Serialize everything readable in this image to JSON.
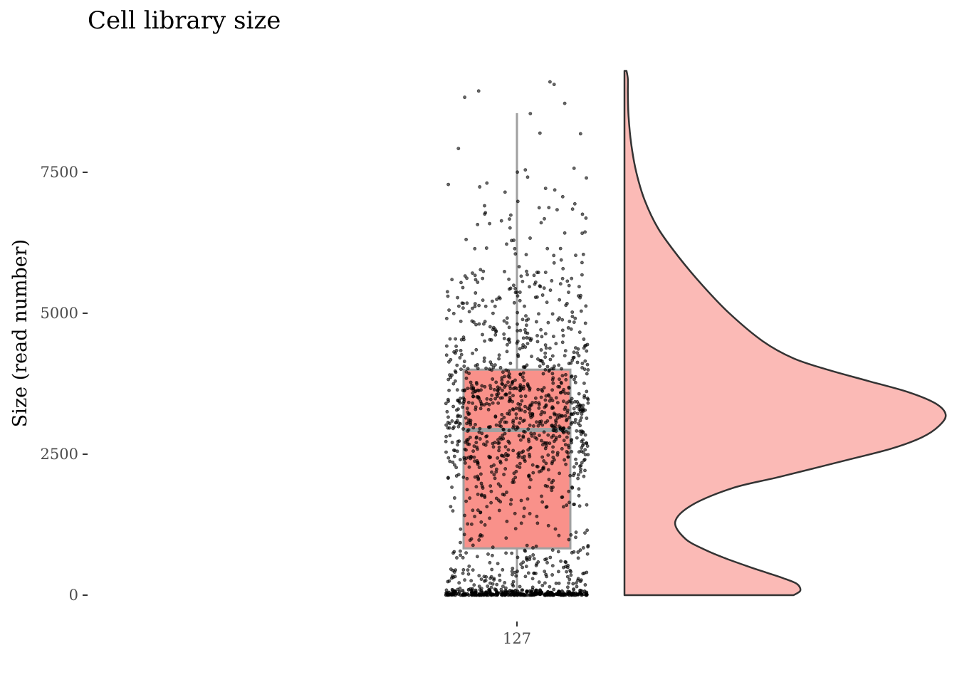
{
  "chart_data": {
    "type": "raincloud",
    "title": "Cell library size",
    "xlabel": "",
    "ylabel": "Size (read number)",
    "categories": [
      "127"
    ],
    "ylim": [
      0,
      9300
    ],
    "y_ticks": [
      "0",
      "2500",
      "5000",
      "7500"
    ],
    "y_tick_values": [
      0,
      2500,
      5000,
      7500
    ],
    "boxplot": {
      "category": "127",
      "whisker_low": 0,
      "q1": 830,
      "median": 2930,
      "q3": 4000,
      "whisker_high": 8550
    },
    "density": {
      "y": [
        0,
        80,
        200,
        300,
        400,
        500,
        650,
        800,
        1000,
        1300,
        1600,
        1900,
        2100,
        2400,
        2600,
        2800,
        3000,
        3200,
        3400,
        3600,
        3800,
        4000,
        4200,
        4500,
        5000,
        5500,
        6000,
        6500,
        7000,
        7500,
        8000,
        8500,
        8900,
        9150,
        9300
      ],
      "density": [
        0.5,
        0.52,
        0.51,
        0.47,
        0.42,
        0.37,
        0.3,
        0.24,
        0.18,
        0.15,
        0.2,
        0.32,
        0.46,
        0.66,
        0.79,
        0.88,
        0.93,
        0.95,
        0.92,
        0.84,
        0.72,
        0.6,
        0.5,
        0.41,
        0.31,
        0.23,
        0.16,
        0.1,
        0.06,
        0.035,
        0.02,
        0.012,
        0.01,
        0.01,
        0.006
      ]
    },
    "points": {
      "count": 1500,
      "near_zero_count": 280,
      "color": "#000000",
      "opacity": 0.6
    },
    "colors": {
      "box_fill": "#F8766D",
      "box_line": "#a0a0a0",
      "density_fill": "#F8766D",
      "density_line": "#333333",
      "points": "#000000",
      "axis_text": "#4d4d4d",
      "background": "#ffffff"
    },
    "grid": false,
    "legend": "none"
  }
}
